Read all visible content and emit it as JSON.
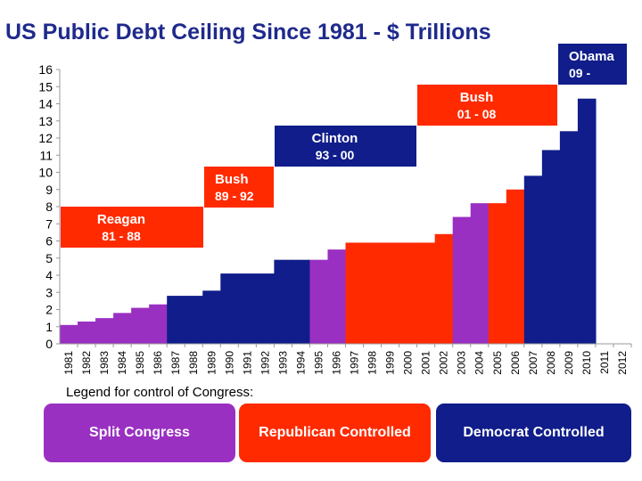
{
  "chart_data": {
    "type": "bar",
    "title": "US Public Debt Ceiling Since 1981 - $ Trillions",
    "xlabel": "",
    "ylabel": "",
    "ylim": [
      0,
      16
    ],
    "yticks": [
      0,
      1,
      2,
      3,
      4,
      5,
      6,
      7,
      8,
      9,
      10,
      11,
      12,
      13,
      14,
      15,
      16
    ],
    "categories": [
      "1981",
      "1982",
      "1983",
      "1984",
      "1985",
      "1986",
      "1987",
      "1988",
      "1989",
      "1990",
      "1991",
      "1992",
      "1993",
      "1994",
      "1995",
      "1996",
      "1997",
      "1998",
      "1999",
      "2000",
      "2001",
      "2002",
      "2003",
      "2004",
      "2005",
      "2006",
      "2007",
      "2008",
      "2009",
      "2010",
      "2011",
      "2012"
    ],
    "values": [
      1.1,
      1.3,
      1.5,
      1.8,
      2.1,
      2.3,
      2.8,
      2.8,
      3.1,
      4.1,
      4.1,
      4.1,
      4.9,
      4.9,
      4.9,
      5.5,
      5.9,
      5.9,
      5.9,
      5.9,
      5.9,
      6.4,
      7.4,
      8.2,
      8.2,
      9.0,
      9.8,
      11.3,
      12.4,
      14.3,
      null,
      null
    ],
    "congress_control": [
      "split",
      "split",
      "split",
      "split",
      "split",
      "split",
      "democrat",
      "democrat",
      "democrat",
      "democrat",
      "democrat",
      "democrat",
      "democrat",
      "democrat",
      "split",
      "split",
      "republican",
      "republican",
      "republican",
      "republican",
      "republican",
      "republican",
      "split",
      "split",
      "republican",
      "republican",
      "democrat",
      "democrat",
      "democrat",
      "democrat",
      null,
      null
    ],
    "presidents": [
      {
        "name": "Reagan",
        "years": "81 - 88",
        "color": "#ff2a00"
      },
      {
        "name": "Bush",
        "years": "89 - 92",
        "color": "#ff2a00"
      },
      {
        "name": "Clinton",
        "years": "93 - 00",
        "color": "#101d8a"
      },
      {
        "name": "Bush",
        "years": "01 - 08",
        "color": "#ff2a00"
      },
      {
        "name": "Obama",
        "years": "09 -",
        "color": "#101d8a"
      }
    ]
  },
  "legend": {
    "title": "Legend for control of Congress:",
    "items": [
      {
        "key": "split",
        "label": "Split Congress",
        "color": "#9a30c2"
      },
      {
        "key": "republican",
        "label": "Republican Controlled",
        "color": "#ff2a00"
      },
      {
        "key": "democrat",
        "label": "Democrat Controlled",
        "color": "#101d8a"
      }
    ]
  }
}
